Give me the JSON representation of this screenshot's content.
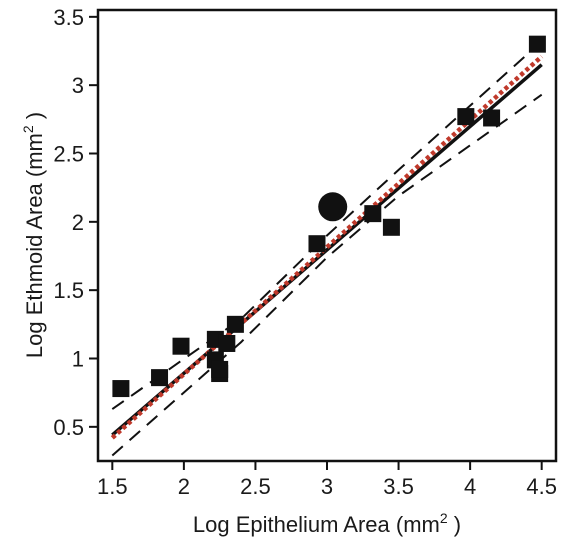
{
  "chart_data": {
    "type": "scatter",
    "xlabel": {
      "pre": "Log Epithelium Area (mm",
      "sup": "2",
      "post": " )"
    },
    "ylabel": {
      "pre": "Log Ethmoid Area (mm",
      "sup": "2",
      "post": " )"
    },
    "xlim": [
      1.4,
      4.6
    ],
    "ylim": [
      0.25,
      3.55
    ],
    "x_ticks": [
      {
        "value": 1.5,
        "label": "1.5"
      },
      {
        "value": 2.0,
        "label": "2"
      },
      {
        "value": 2.5,
        "label": "2.5"
      },
      {
        "value": 3.0,
        "label": "3"
      },
      {
        "value": 3.5,
        "label": "3.5"
      },
      {
        "value": 4.0,
        "label": "4"
      },
      {
        "value": 4.5,
        "label": "4.5"
      }
    ],
    "y_ticks": [
      {
        "value": 0.5,
        "label": "0.5"
      },
      {
        "value": 1.0,
        "label": "1"
      },
      {
        "value": 1.5,
        "label": "1.5"
      },
      {
        "value": 2.0,
        "label": "2"
      },
      {
        "value": 2.5,
        "label": "2.5"
      },
      {
        "value": 3.0,
        "label": "3"
      },
      {
        "value": 3.5,
        "label": "3.5"
      }
    ],
    "grid": false,
    "series": [
      {
        "marker": "square",
        "color": "#111111",
        "points": [
          {
            "x": 1.56,
            "y": 0.78
          },
          {
            "x": 1.83,
            "y": 0.86
          },
          {
            "x": 1.98,
            "y": 1.09
          },
          {
            "x": 2.22,
            "y": 1.14
          },
          {
            "x": 2.22,
            "y": 0.99
          },
          {
            "x": 2.25,
            "y": 0.89
          },
          {
            "x": 2.25,
            "y": 0.92
          },
          {
            "x": 2.3,
            "y": 1.11
          },
          {
            "x": 2.36,
            "y": 1.25
          },
          {
            "x": 2.93,
            "y": 1.84
          },
          {
            "x": 3.32,
            "y": 2.06
          },
          {
            "x": 3.45,
            "y": 1.96
          },
          {
            "x": 3.97,
            "y": 2.77
          },
          {
            "x": 4.15,
            "y": 2.76
          },
          {
            "x": 4.47,
            "y": 3.3
          }
        ]
      },
      {
        "marker": "circle",
        "color": "#111111",
        "points": [
          {
            "x": 3.04,
            "y": 2.11
          }
        ]
      }
    ],
    "lines": [
      {
        "style": "solid",
        "color": "#111111",
        "points": [
          {
            "x": 1.5,
            "y": 0.44
          },
          {
            "x": 4.5,
            "y": 3.15
          }
        ]
      },
      {
        "style": "dotted",
        "color": "#c0392b",
        "points": [
          {
            "x": 1.5,
            "y": 0.42
          },
          {
            "x": 4.5,
            "y": 3.21
          }
        ]
      },
      {
        "style": "dashed",
        "color": "#111111",
        "points": [
          {
            "x": 1.5,
            "y": 0.63
          },
          {
            "x": 2.4,
            "y": 1.29
          },
          {
            "x": 3.0,
            "y": 1.9
          },
          {
            "x": 3.5,
            "y": 2.38
          },
          {
            "x": 4.5,
            "y": 3.32
          }
        ]
      },
      {
        "style": "dashed",
        "color": "#111111",
        "points": [
          {
            "x": 1.5,
            "y": 0.29
          },
          {
            "x": 2.4,
            "y": 1.12
          },
          {
            "x": 3.0,
            "y": 1.74
          },
          {
            "x": 3.5,
            "y": 2.19
          },
          {
            "x": 4.5,
            "y": 2.93
          }
        ]
      }
    ]
  }
}
